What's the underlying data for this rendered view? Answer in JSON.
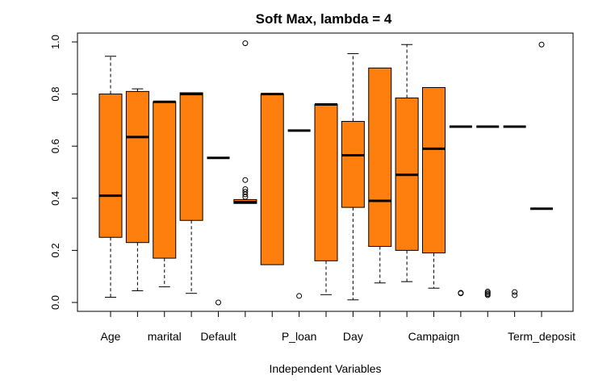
{
  "colors": {
    "box_fill": "#FF7F0E",
    "stroke": "#000000",
    "background": "#FFFFFF"
  },
  "chart_data": {
    "type": "box",
    "title": "Soft Max, lambda = 4",
    "xlabel": "Independent Variables",
    "ylabel": "",
    "ylim": [
      0,
      1
    ],
    "yticks": [
      "0.0",
      "0.2",
      "0.4",
      "0.6",
      "0.8",
      "1.0"
    ],
    "grid": false,
    "categories": [
      "Age",
      "",
      "marital",
      "",
      "Default",
      "",
      "",
      "P_loan",
      "",
      "Day",
      "",
      "",
      "Campaign",
      "",
      "",
      "",
      "Term_deposit"
    ],
    "boxes": [
      {
        "q1": 0.25,
        "median": 0.41,
        "q3": 0.8,
        "low": 0.02,
        "high": 0.945,
        "outliers": []
      },
      {
        "q1": 0.23,
        "median": 0.635,
        "q3": 0.81,
        "low": 0.045,
        "high": 0.82,
        "outliers": []
      },
      {
        "q1": 0.17,
        "median": 0.77,
        "q3": 0.77,
        "low": 0.06,
        "high": 0.77,
        "outliers": []
      },
      {
        "q1": 0.315,
        "median": 0.8,
        "q3": 0.805,
        "low": 0.035,
        "high": 0.805,
        "outliers": []
      },
      {
        "q1": 0.555,
        "median": 0.555,
        "q3": 0.555,
        "low": 0.555,
        "high": 0.555,
        "outliers": [
          0.0
        ]
      },
      {
        "q1": 0.38,
        "median": 0.385,
        "q3": 0.395,
        "low": 0.38,
        "high": 0.395,
        "outliers": [
          0.405,
          0.415,
          0.425,
          0.435,
          0.47,
          0.995
        ]
      },
      {
        "q1": 0.145,
        "median": 0.8,
        "q3": 0.8,
        "low": 0.145,
        "high": 0.8,
        "outliers": []
      },
      {
        "q1": 0.66,
        "median": 0.66,
        "q3": 0.66,
        "low": 0.66,
        "high": 0.66,
        "outliers": [
          0.025
        ]
      },
      {
        "q1": 0.16,
        "median": 0.76,
        "q3": 0.76,
        "low": 0.03,
        "high": 0.76,
        "outliers": []
      },
      {
        "q1": 0.365,
        "median": 0.565,
        "q3": 0.695,
        "low": 0.01,
        "high": 0.955,
        "outliers": []
      },
      {
        "q1": 0.215,
        "median": 0.39,
        "q3": 0.9,
        "low": 0.075,
        "high": 0.9,
        "outliers": []
      },
      {
        "q1": 0.2,
        "median": 0.49,
        "q3": 0.785,
        "low": 0.08,
        "high": 0.99,
        "outliers": []
      },
      {
        "q1": 0.19,
        "median": 0.59,
        "q3": 0.825,
        "low": 0.055,
        "high": 0.825,
        "outliers": []
      },
      {
        "q1": 0.675,
        "median": 0.675,
        "q3": 0.675,
        "low": 0.675,
        "high": 0.675,
        "outliers": [
          0.035,
          0.037
        ]
      },
      {
        "q1": 0.675,
        "median": 0.675,
        "q3": 0.675,
        "low": 0.675,
        "high": 0.675,
        "outliers": [
          0.028,
          0.032,
          0.037,
          0.042
        ]
      },
      {
        "q1": 0.675,
        "median": 0.675,
        "q3": 0.675,
        "low": 0.675,
        "high": 0.675,
        "outliers": [
          0.028,
          0.04
        ]
      },
      {
        "q1": 0.36,
        "median": 0.36,
        "q3": 0.36,
        "low": 0.36,
        "high": 0.36,
        "outliers": [
          0.99
        ]
      }
    ]
  }
}
